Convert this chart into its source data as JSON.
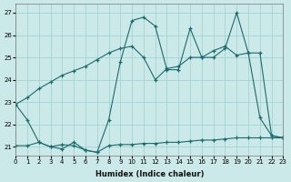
{
  "xlabel": "Humidex (Indice chaleur)",
  "xlim": [
    0,
    23
  ],
  "ylim": [
    20.6,
    27.4
  ],
  "yticks": [
    21,
    22,
    23,
    24,
    25,
    26,
    27
  ],
  "xticks": [
    0,
    1,
    2,
    3,
    4,
    5,
    6,
    7,
    8,
    9,
    10,
    11,
    12,
    13,
    14,
    15,
    16,
    17,
    18,
    19,
    20,
    21,
    22,
    23
  ],
  "bg_color": "#cce9e9",
  "grid_color": "#9ecece",
  "line_color": "#1a6b6b",
  "curve1_x": [
    0,
    1,
    2,
    3,
    4,
    5,
    6,
    7,
    8,
    9,
    10,
    11,
    12,
    13,
    14,
    15,
    16,
    17,
    18,
    19,
    20,
    21,
    22,
    23
  ],
  "curve1_y": [
    22.9,
    22.2,
    21.2,
    21.0,
    20.9,
    21.2,
    20.85,
    20.75,
    22.2,
    24.8,
    26.65,
    26.8,
    26.4,
    24.45,
    24.45,
    26.3,
    25.0,
    25.0,
    25.4,
    27.0,
    25.2,
    22.3,
    21.5,
    21.4
  ],
  "curve2_x": [
    0,
    1,
    2,
    3,
    4,
    5,
    6,
    7,
    8,
    9,
    10,
    11,
    12,
    13,
    14,
    15,
    16,
    17,
    18,
    19,
    20,
    21,
    22,
    23
  ],
  "curve2_y": [
    21.05,
    21.05,
    21.2,
    21.0,
    21.1,
    21.05,
    20.85,
    20.75,
    21.05,
    21.1,
    21.1,
    21.15,
    21.15,
    21.2,
    21.2,
    21.25,
    21.3,
    21.3,
    21.35,
    21.4,
    21.4,
    21.4,
    21.4,
    21.4
  ],
  "curve3_x": [
    0,
    1,
    2,
    3,
    4,
    5,
    6,
    7,
    8,
    9,
    10,
    11,
    12,
    13,
    14,
    15,
    16,
    17,
    18,
    19,
    20,
    21,
    22,
    23
  ],
  "curve3_y": [
    22.9,
    23.2,
    23.6,
    23.9,
    24.2,
    24.4,
    24.6,
    24.9,
    25.2,
    25.4,
    25.5,
    25.0,
    24.0,
    24.5,
    24.6,
    25.0,
    25.0,
    25.3,
    25.5,
    25.1,
    25.2,
    25.2,
    21.5,
    21.4
  ]
}
